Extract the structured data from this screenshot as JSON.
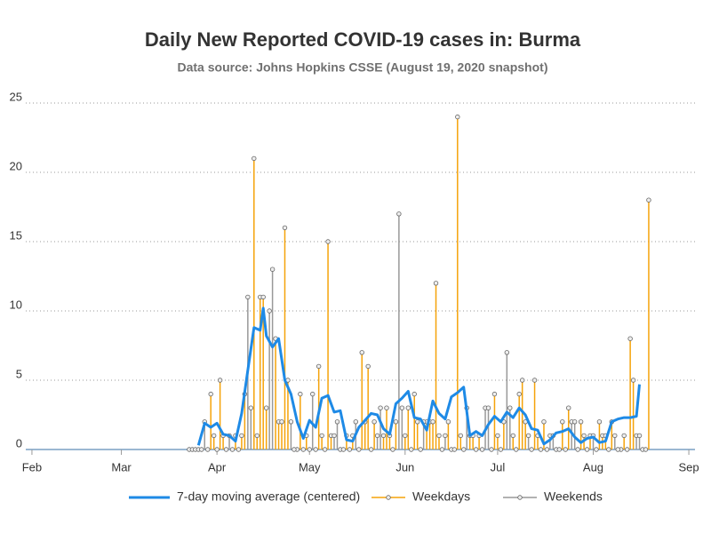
{
  "chart_data": {
    "type": "stem",
    "title": "Daily New Reported COVID-19 cases in: Burma",
    "subtitle": "Data source: Johns Hopkins CSSE (August 19, 2020 snapshot)",
    "xlim": [
      30,
      247
    ],
    "xticks": [
      {
        "value": 32,
        "label": "Feb"
      },
      {
        "value": 61,
        "label": "Mar"
      },
      {
        "value": 92,
        "label": "Apr"
      },
      {
        "value": 122,
        "label": "May"
      },
      {
        "value": 153,
        "label": "Jun"
      },
      {
        "value": 183,
        "label": "Jul"
      },
      {
        "value": 214,
        "label": "Aug"
      },
      {
        "value": 245,
        "label": "Sep"
      }
    ],
    "ylim": [
      0,
      25
    ],
    "yticks": [
      0,
      5,
      10,
      15,
      20,
      25
    ],
    "grid": true,
    "series": [
      {
        "name": "7-day moving average (centered)",
        "type": "line",
        "color": "#1e8ae6",
        "x": [
          86,
          88,
          90,
          92,
          94,
          96,
          98,
          100,
          102,
          104,
          106,
          107,
          108,
          110,
          112,
          114,
          116,
          118,
          120,
          122,
          124,
          126,
          128,
          130,
          132,
          134,
          136,
          138,
          140,
          142,
          144,
          146,
          148,
          150,
          152,
          154,
          156,
          158,
          160,
          162,
          164,
          166,
          168,
          170,
          172,
          174,
          176,
          178,
          180,
          182,
          184,
          186,
          188,
          190,
          192,
          194,
          196,
          198,
          200,
          202,
          204,
          206,
          208,
          210,
          212,
          214,
          216,
          218,
          220,
          222,
          224,
          226,
          228,
          229
        ],
        "values": [
          0.3,
          1.9,
          1.6,
          1.9,
          1.1,
          1.0,
          0.6,
          2.6,
          5.7,
          8.8,
          8.6,
          10.2,
          8.2,
          7.4,
          8.0,
          5.0,
          4.0,
          2.0,
          0.8,
          2.1,
          1.6,
          3.7,
          3.9,
          2.7,
          2.8,
          0.7,
          0.6,
          1.6,
          2.1,
          2.6,
          2.5,
          1.5,
          1.1,
          3.3,
          3.7,
          4.2,
          2.3,
          2.2,
          1.4,
          3.5,
          2.6,
          2.2,
          3.8,
          4.1,
          4.5,
          1.0,
          1.3,
          1.0,
          1.8,
          2.4,
          2.0,
          2.7,
          2.3,
          3.0,
          2.5,
          1.5,
          1.4,
          0.4,
          0.7,
          1.2,
          1.3,
          1.5,
          0.9,
          0.5,
          0.8,
          0.9,
          0.5,
          0.6,
          2.0,
          2.2,
          2.3,
          2.3,
          2.4,
          4.7
        ]
      },
      {
        "name": "Weekdays",
        "type": "stem",
        "color": "#f5a30a",
        "x": [
          83,
          84,
          85,
          86,
          87,
          90,
          91,
          92,
          93,
          94,
          97,
          98,
          99,
          100,
          101,
          104,
          105,
          106,
          107,
          108,
          111,
          112,
          113,
          114,
          115,
          118,
          119,
          120,
          121,
          122,
          125,
          126,
          127,
          128,
          129,
          132,
          133,
          134,
          135,
          136,
          139,
          140,
          141,
          142,
          143,
          146,
          147,
          148,
          149,
          150,
          153,
          154,
          155,
          156,
          157,
          160,
          161,
          162,
          163,
          164,
          167,
          168,
          169,
          170,
          171,
          174,
          175,
          176,
          177,
          178,
          181,
          182,
          183,
          184,
          185,
          188,
          189,
          190,
          191,
          192,
          195,
          196,
          197,
          198,
          199,
          202,
          203,
          204,
          205,
          206,
          209,
          210,
          211,
          212,
          213,
          216,
          217,
          218,
          219,
          220,
          223,
          224,
          225,
          226,
          227,
          230,
          231,
          232
        ],
        "values": [
          0,
          0,
          0,
          0,
          0,
          4,
          1,
          0,
          5,
          1,
          0,
          1,
          0,
          1,
          4,
          21,
          1,
          11,
          11,
          3,
          8,
          2,
          2,
          16,
          5,
          0,
          4,
          0,
          1,
          0,
          6,
          1,
          0,
          15,
          1,
          0,
          0,
          1,
          0,
          1,
          7,
          2,
          6,
          0,
          2,
          1,
          3,
          1,
          0,
          2,
          1,
          3,
          0,
          4,
          2,
          2,
          2,
          2,
          12,
          1,
          2,
          0,
          0,
          24,
          1,
          1,
          1,
          0,
          1,
          0,
          0,
          4,
          1,
          0,
          2,
          1,
          0,
          4,
          5,
          2,
          5,
          1,
          0,
          2,
          0,
          0,
          0,
          2,
          0,
          3,
          0,
          2,
          1,
          0,
          1,
          2,
          1,
          1,
          0,
          2,
          0,
          1,
          0,
          8,
          5,
          0,
          0,
          18
        ]
      },
      {
        "name": "Weekends",
        "type": "stem",
        "color": "#999999",
        "x": [
          88,
          89,
          95,
          96,
          102,
          103,
          109,
          110,
          116,
          117,
          123,
          124,
          130,
          131,
          137,
          138,
          144,
          145,
          151,
          152,
          158,
          159,
          165,
          166,
          172,
          173,
          179,
          180,
          186,
          187,
          193,
          194,
          200,
          201,
          207,
          208,
          214,
          215,
          221,
          222,
          228,
          229
        ],
        "values": [
          2,
          0,
          0,
          1,
          11,
          3,
          10,
          13,
          2,
          0,
          4,
          0,
          1,
          2,
          2,
          0,
          1,
          3,
          17,
          3,
          0,
          2,
          0,
          1,
          0,
          3,
          3,
          3,
          7,
          3,
          1,
          0,
          1,
          1,
          2,
          2,
          1,
          0,
          1,
          0,
          1,
          1
        ]
      }
    ]
  }
}
